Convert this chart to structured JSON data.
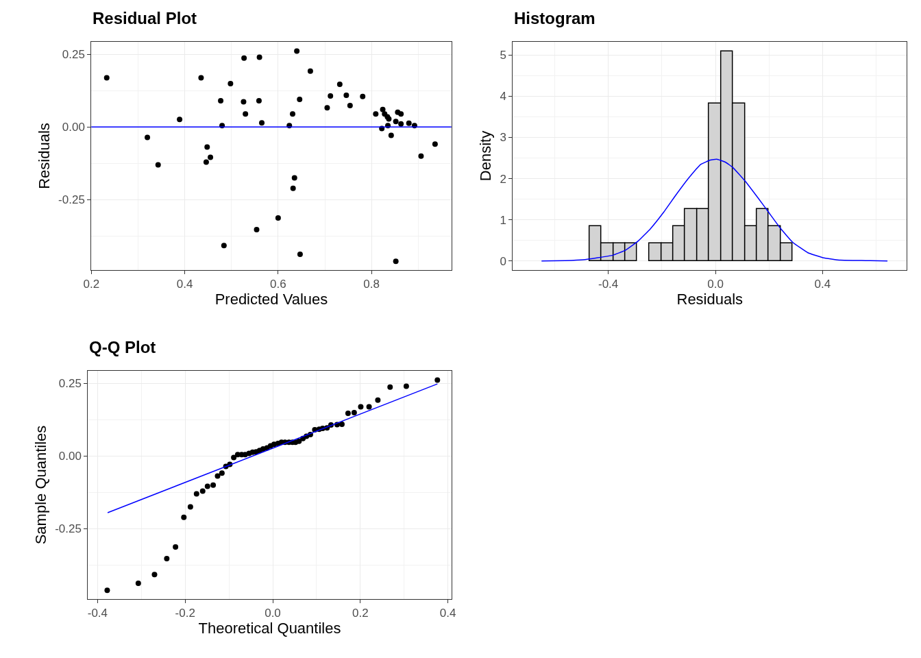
{
  "chart_data": [
    {
      "type": "scatter",
      "title": "Residual Plot",
      "xlabel": "Predicted Values",
      "ylabel": "Residuals",
      "marker": "circle",
      "grid": true,
      "color": "#000000",
      "x": [
        0.233,
        0.32,
        0.343,
        0.389,
        0.435,
        0.448,
        0.455,
        0.446,
        0.477,
        0.48,
        0.484,
        0.498,
        0.527,
        0.526,
        0.53,
        0.56,
        0.559,
        0.565,
        0.554,
        0.6,
        0.624,
        0.631,
        0.635,
        0.632,
        0.64,
        0.646,
        0.647,
        0.669,
        0.705,
        0.712,
        0.732,
        0.746,
        0.754,
        0.781,
        0.809,
        0.824,
        0.828,
        0.834,
        0.837,
        0.835,
        0.822,
        0.842,
        0.852,
        0.856,
        0.863,
        0.863,
        0.88,
        0.892,
        0.852,
        0.906,
        0.936
      ],
      "values": [
        0.169,
        -0.036,
        -0.13,
        0.026,
        0.169,
        -0.069,
        -0.104,
        -0.121,
        0.09,
        0.005,
        -0.408,
        0.149,
        0.237,
        0.087,
        0.045,
        0.24,
        0.09,
        0.014,
        -0.353,
        -0.313,
        0.005,
        0.045,
        -0.175,
        -0.211,
        0.261,
        0.095,
        -0.438,
        0.192,
        0.066,
        0.107,
        0.147,
        0.109,
        0.074,
        0.105,
        0.045,
        0.06,
        0.045,
        0.035,
        0.028,
        0.005,
        -0.005,
        -0.029,
        0.019,
        0.051,
        0.045,
        0.011,
        0.013,
        0.005,
        -0.462,
        -0.1,
        -0.059
      ],
      "ref_lines": [
        {
          "axis": "y",
          "value": 0,
          "color": "#0000ff",
          "line_style": "solid"
        }
      ],
      "xlim": [
        0.2,
        0.971
      ],
      "xticks": [
        {
          "value": 0.2,
          "label": "0.2"
        },
        {
          "value": 0.4,
          "label": "0.4"
        },
        {
          "value": 0.6,
          "label": "0.6"
        },
        {
          "value": 0.8,
          "label": "0.8"
        }
      ],
      "ylim": [
        -0.492,
        0.293
      ],
      "yticks": [
        {
          "value": -0.25,
          "label": "-0.25"
        },
        {
          "value": 0,
          "label": "0.00"
        },
        {
          "value": 0.25,
          "label": "0.25"
        }
      ]
    },
    {
      "type": "histogram",
      "title": "Histogram",
      "xlabel": "Residuals",
      "ylabel": "Density",
      "grid": true,
      "series": [
        {
          "type": "histogram",
          "color": "#d3d3d3",
          "bins": [
            -0.47,
            -0.425,
            -0.381,
            -0.336,
            -0.292,
            -0.247,
            -0.202,
            -0.158,
            -0.113,
            -0.069,
            -0.024,
            0.021,
            0.065,
            0.11,
            0.154,
            0.199,
            0.244,
            0.288
          ],
          "values": [
            0.85,
            0.43,
            0.43,
            0.43,
            0,
            0.43,
            0.43,
            0.85,
            1.26,
            1.26,
            3.82,
            5.09,
            3.82,
            0.85,
            1.26,
            0.85,
            0.43
          ]
        },
        {
          "type": "line",
          "marker": "none",
          "color": "#0000ff",
          "x": [
            -0.649,
            -0.56,
            -0.495,
            -0.439,
            -0.383,
            -0.336,
            -0.289,
            -0.243,
            -0.196,
            -0.149,
            -0.103,
            -0.056,
            -0.019,
            0.005,
            0.037,
            0.065,
            0.112,
            0.159,
            0.201,
            0.243,
            0.289,
            0.345,
            0.401,
            0.467,
            0.56,
            0.642
          ],
          "values": [
            0,
            0.01,
            0.03,
            0.08,
            0.14,
            0.26,
            0.48,
            0.78,
            1.16,
            1.59,
            1.99,
            2.34,
            2.45,
            2.47,
            2.4,
            2.27,
            1.93,
            1.53,
            1.16,
            0.79,
            0.45,
            0.2,
            0.08,
            0.02,
            0.01,
            0
          ]
        }
      ],
      "xlim": [
        -0.756,
        0.714
      ],
      "xticks": [
        {
          "value": -0.4,
          "label": "-0.4"
        },
        {
          "value": 0,
          "label": "0.0"
        },
        {
          "value": 0.4,
          "label": "0.4"
        }
      ],
      "ylim": [
        -0.22,
        5.32
      ],
      "yticks": [
        0,
        1,
        2,
        3,
        4,
        5
      ]
    },
    {
      "type": "scatter",
      "title": "Q-Q Plot",
      "xlabel": "Theoretical Quantiles",
      "ylabel": "Sample Quantiles",
      "grid": true,
      "series": [
        {
          "type": "scatter",
          "marker": "circle",
          "color": "#000000",
          "x": [
            -0.378,
            -0.307,
            -0.27,
            -0.242,
            -0.222,
            -0.203,
            -0.188,
            -0.174,
            -0.16,
            -0.149,
            -0.136,
            -0.126,
            -0.116,
            -0.107,
            -0.098,
            -0.089,
            -0.08,
            -0.071,
            -0.063,
            -0.054,
            -0.046,
            -0.038,
            -0.03,
            -0.022,
            -0.013,
            -0.005,
            0.003,
            0.012,
            0.02,
            0.028,
            0.037,
            0.045,
            0.052,
            0.06,
            0.069,
            0.077,
            0.086,
            0.096,
            0.106,
            0.114,
            0.124,
            0.133,
            0.147,
            0.158,
            0.172,
            0.186,
            0.201,
            0.22,
            0.24,
            0.268,
            0.305,
            0.376
          ],
          "values": [
            -0.462,
            -0.438,
            -0.408,
            -0.353,
            -0.313,
            -0.211,
            -0.175,
            -0.13,
            -0.121,
            -0.104,
            -0.1,
            -0.069,
            -0.059,
            -0.036,
            -0.029,
            -0.005,
            0.005,
            0.005,
            0.005,
            0.009,
            0.013,
            0.014,
            0.019,
            0.024,
            0.028,
            0.035,
            0.04,
            0.043,
            0.047,
            0.047,
            0.047,
            0.047,
            0.047,
            0.051,
            0.06,
            0.068,
            0.074,
            0.09,
            0.092,
            0.095,
            0.097,
            0.107,
            0.108,
            0.109,
            0.147,
            0.149,
            0.169,
            0.169,
            0.192,
            0.237,
            0.24,
            0.261
          ]
        },
        {
          "type": "line",
          "marker": "none",
          "color": "#0000ff",
          "x": [
            -0.377,
            0.376
          ],
          "values": [
            -0.195,
            0.248
          ]
        }
      ],
      "xlim": [
        -0.422,
        0.408
      ],
      "xticks": [
        {
          "value": -0.4,
          "label": "-0.4"
        },
        {
          "value": -0.2,
          "label": "-0.2"
        },
        {
          "value": 0,
          "label": "0.0"
        },
        {
          "value": 0.2,
          "label": "0.2"
        },
        {
          "value": 0.4,
          "label": "0.4"
        }
      ],
      "ylim": [
        -0.492,
        0.293
      ],
      "yticks": [
        {
          "value": -0.25,
          "label": "-0.25"
        },
        {
          "value": 0,
          "label": "0.00"
        },
        {
          "value": 0.25,
          "label": "0.25"
        }
      ]
    }
  ]
}
